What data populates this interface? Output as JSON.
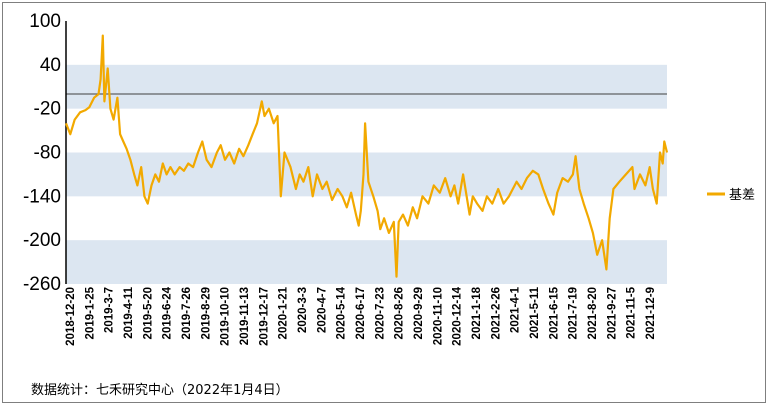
{
  "chart_data": {
    "type": "line",
    "title": "",
    "xlabel": "",
    "ylabel": "",
    "ylim": [
      -260,
      100
    ],
    "y_ticks": [
      100,
      40,
      -20,
      -80,
      -140,
      -200,
      -260
    ],
    "shaded_bands": [
      [
        -20,
        40
      ],
      [
        -140,
        -80
      ],
      [
        -260,
        -200
      ]
    ],
    "reference_line": 0,
    "x_range": [
      "2018-12-20",
      "2022-01-04"
    ],
    "x_tick_labels": [
      "2018-12-20",
      "2019-1-25",
      "2019-3-7",
      "2019-4-11",
      "2019-5-20",
      "2019-6-24",
      "2019-7-26",
      "2019-8-29",
      "2019-10-10",
      "2019-11-13",
      "2019-12-17",
      "2020-1-21",
      "2020-3-3",
      "2020-4-7",
      "2020-5-14",
      "2020-6-17",
      "2020-7-23",
      "2020-8-26",
      "2020-9-29",
      "2020-11-10",
      "2020-12-14",
      "2021-1-18",
      "2021-2-26",
      "2021-4-1",
      "2021-5-11",
      "2021-6-15",
      "2021-7-19",
      "2021-8-20",
      "2021-9-27",
      "2021-11-5",
      "2021-12-9"
    ],
    "legend_position": "right",
    "series": [
      {
        "name": "基差",
        "color": "#F2A900",
        "points": [
          [
            "2018-12-20",
            -40
          ],
          [
            "2018-12-28",
            -55
          ],
          [
            "2019-1-5",
            -35
          ],
          [
            "2019-1-15",
            -25
          ],
          [
            "2019-1-25",
            -22
          ],
          [
            "2019-2-1",
            -18
          ],
          [
            "2019-2-10",
            -5
          ],
          [
            "2019-2-18",
            0
          ],
          [
            "2019-2-22",
            20
          ],
          [
            "2019-2-26",
            80
          ],
          [
            "2019-3-1",
            -10
          ],
          [
            "2019-3-7",
            35
          ],
          [
            "2019-3-12",
            -20
          ],
          [
            "2019-3-18",
            -35
          ],
          [
            "2019-3-25",
            -5
          ],
          [
            "2019-3-30",
            -55
          ],
          [
            "2019-4-5",
            -65
          ],
          [
            "2019-4-11",
            -75
          ],
          [
            "2019-4-18",
            -90
          ],
          [
            "2019-4-25",
            -110
          ],
          [
            "2019-5-1",
            -125
          ],
          [
            "2019-5-8",
            -100
          ],
          [
            "2019-5-14",
            -140
          ],
          [
            "2019-5-20",
            -150
          ],
          [
            "2019-5-27",
            -125
          ],
          [
            "2019-6-3",
            -110
          ],
          [
            "2019-6-10",
            -120
          ],
          [
            "2019-6-17",
            -95
          ],
          [
            "2019-6-24",
            -110
          ],
          [
            "2019-7-1",
            -100
          ],
          [
            "2019-7-9",
            -110
          ],
          [
            "2019-7-18",
            -100
          ],
          [
            "2019-7-26",
            -105
          ],
          [
            "2019-8-3",
            -95
          ],
          [
            "2019-8-12",
            -100
          ],
          [
            "2019-8-21",
            -80
          ],
          [
            "2019-8-29",
            -65
          ],
          [
            "2019-9-6",
            -90
          ],
          [
            "2019-9-15",
            -100
          ],
          [
            "2019-9-25",
            -80
          ],
          [
            "2019-10-2",
            -70
          ],
          [
            "2019-10-10",
            -90
          ],
          [
            "2019-10-18",
            -80
          ],
          [
            "2019-10-27",
            -95
          ],
          [
            "2019-11-5",
            -75
          ],
          [
            "2019-11-13",
            -85
          ],
          [
            "2019-11-22",
            -70
          ],
          [
            "2019-11-30",
            -55
          ],
          [
            "2019-12-8",
            -40
          ],
          [
            "2019-12-14",
            -20
          ],
          [
            "2019-12-17",
            -10
          ],
          [
            "2019-12-22",
            -30
          ],
          [
            "2019-12-30",
            -20
          ],
          [
            "2020-1-8",
            -40
          ],
          [
            "2020-1-15",
            -30
          ],
          [
            "2020-1-21",
            -140
          ],
          [
            "2020-1-28",
            -80
          ],
          [
            "2020-2-8",
            -100
          ],
          [
            "2020-2-18",
            -130
          ],
          [
            "2020-2-25",
            -110
          ],
          [
            "2020-3-3",
            -120
          ],
          [
            "2020-3-12",
            -100
          ],
          [
            "2020-3-20",
            -140
          ],
          [
            "2020-3-28",
            -110
          ],
          [
            "2020-4-7",
            -130
          ],
          [
            "2020-4-15",
            -120
          ],
          [
            "2020-4-25",
            -145
          ],
          [
            "2020-5-5",
            -130
          ],
          [
            "2020-5-14",
            -140
          ],
          [
            "2020-5-22",
            -155
          ],
          [
            "2020-5-30",
            -135
          ],
          [
            "2020-6-8",
            -165
          ],
          [
            "2020-6-13",
            -180
          ],
          [
            "2020-6-17",
            -160
          ],
          [
            "2020-6-22",
            -110
          ],
          [
            "2020-6-25",
            -40
          ],
          [
            "2020-7-1",
            -120
          ],
          [
            "2020-7-10",
            -140
          ],
          [
            "2020-7-18",
            -160
          ],
          [
            "2020-7-23",
            -185
          ],
          [
            "2020-7-30",
            -170
          ],
          [
            "2020-8-8",
            -190
          ],
          [
            "2020-8-17",
            -175
          ],
          [
            "2020-8-22",
            -250
          ],
          [
            "2020-8-26",
            -175
          ],
          [
            "2020-9-3",
            -165
          ],
          [
            "2020-9-12",
            -180
          ],
          [
            "2020-9-21",
            -155
          ],
          [
            "2020-9-29",
            -170
          ],
          [
            "2020-10-9",
            -140
          ],
          [
            "2020-10-20",
            -150
          ],
          [
            "2020-10-30",
            -125
          ],
          [
            "2020-11-10",
            -135
          ],
          [
            "2020-11-20",
            -115
          ],
          [
            "2020-11-30",
            -140
          ],
          [
            "2020-12-7",
            -125
          ],
          [
            "2020-12-14",
            -150
          ],
          [
            "2020-12-23",
            -110
          ],
          [
            "2021-1-4",
            -165
          ],
          [
            "2021-1-10",
            -140
          ],
          [
            "2021-1-18",
            -150
          ],
          [
            "2021-1-28",
            -160
          ],
          [
            "2021-2-5",
            -140
          ],
          [
            "2021-2-15",
            -150
          ],
          [
            "2021-2-26",
            -130
          ],
          [
            "2021-3-8",
            -150
          ],
          [
            "2021-3-18",
            -140
          ],
          [
            "2021-4-1",
            -120
          ],
          [
            "2021-4-10",
            -130
          ],
          [
            "2021-4-20",
            -115
          ],
          [
            "2021-5-1",
            -105
          ],
          [
            "2021-5-11",
            -110
          ],
          [
            "2021-5-20",
            -130
          ],
          [
            "2021-5-30",
            -150
          ],
          [
            "2021-6-8",
            -165
          ],
          [
            "2021-6-15",
            -135
          ],
          [
            "2021-6-25",
            -115
          ],
          [
            "2021-7-5",
            -120
          ],
          [
            "2021-7-14",
            -110
          ],
          [
            "2021-7-19",
            -85
          ],
          [
            "2021-7-26",
            -130
          ],
          [
            "2021-8-3",
            -150
          ],
          [
            "2021-8-12",
            -170
          ],
          [
            "2021-8-20",
            -190
          ],
          [
            "2021-8-28",
            -220
          ],
          [
            "2021-9-6",
            -200
          ],
          [
            "2021-9-14",
            -240
          ],
          [
            "2021-9-20",
            -170
          ],
          [
            "2021-9-27",
            -130
          ],
          [
            "2021-10-8",
            -120
          ],
          [
            "2021-10-20",
            -110
          ],
          [
            "2021-11-1",
            -100
          ],
          [
            "2021-11-5",
            -130
          ],
          [
            "2021-11-15",
            -110
          ],
          [
            "2021-11-25",
            -125
          ],
          [
            "2021-12-3",
            -100
          ],
          [
            "2021-12-9",
            -130
          ],
          [
            "2021-12-16",
            -150
          ],
          [
            "2021-12-22",
            -80
          ],
          [
            "2021-12-27",
            -95
          ],
          [
            "2021-12-30",
            -65
          ],
          [
            "2022-1-4",
            -80
          ]
        ]
      }
    ]
  },
  "footer": {
    "source": "数据统计：七禾研究中心（2022年1月4日）"
  }
}
